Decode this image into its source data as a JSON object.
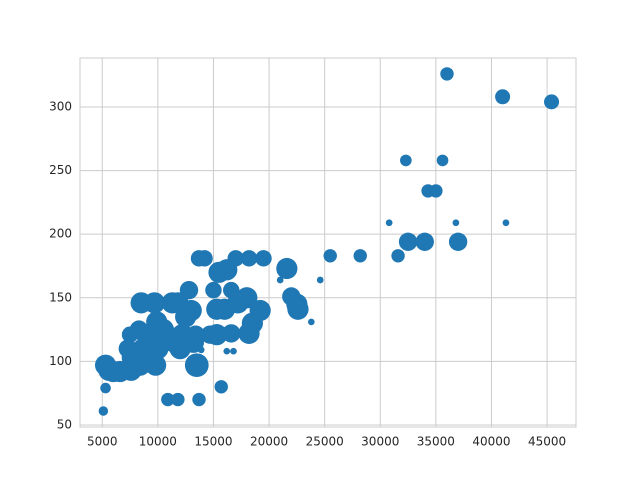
{
  "chart_data": {
    "type": "scatter",
    "color": "#1f77b4",
    "grid": true,
    "x": [
      36000,
      41000,
      45400,
      32300,
      35600,
      34300,
      35000,
      30800,
      36800,
      41300,
      32500,
      34000,
      37000,
      31600,
      25500,
      28200,
      24600,
      21000,
      21600,
      22000,
      22500,
      22600,
      23800,
      19500,
      18200,
      17000,
      16200,
      15500,
      13700,
      14200,
      16600,
      15000,
      18000,
      17200,
      19200,
      16000,
      15300,
      18500,
      18200,
      16600,
      15300,
      14700,
      16200,
      16800,
      13900,
      13500,
      15700,
      13700,
      10900,
      11800,
      5100,
      5300,
      12800,
      13000,
      12500,
      11300,
      11800,
      9700,
      8500,
      9900,
      9000,
      10700,
      11500,
      12000,
      10000,
      8700,
      7500,
      7300,
      7700,
      9000,
      8400,
      9800,
      7600,
      6600,
      6000,
      5300,
      5600,
      9200,
      13200,
      12200,
      13400,
      8300,
      10500
    ],
    "y": [
      326,
      308,
      304,
      258,
      258,
      234,
      234,
      209,
      209,
      209,
      194,
      194,
      194,
      183,
      183,
      183,
      164,
      164,
      173,
      151,
      145,
      141,
      131,
      181,
      181,
      181,
      172,
      170,
      181,
      181,
      156,
      156,
      150,
      146,
      140,
      141,
      141,
      130,
      122,
      122,
      121,
      121,
      108,
      108,
      109,
      97,
      80,
      70,
      70,
      70,
      61,
      79,
      156,
      140,
      135,
      146,
      146,
      146,
      146,
      131,
      121,
      121,
      115,
      110,
      110,
      110,
      121,
      110,
      103,
      103,
      97,
      97,
      93,
      92,
      92,
      97,
      93,
      110,
      115,
      121,
      121,
      125,
      125
    ],
    "sizes": [
      80,
      100,
      100,
      60,
      60,
      80,
      80,
      20,
      20,
      20,
      150,
      150,
      150,
      80,
      80,
      80,
      20,
      20,
      200,
      150,
      200,
      200,
      20,
      120,
      120,
      120,
      200,
      200,
      120,
      120,
      120,
      120,
      200,
      200,
      200,
      200,
      200,
      200,
      200,
      150,
      200,
      150,
      20,
      20,
      20,
      250,
      80,
      80,
      80,
      80,
      40,
      50,
      150,
      200,
      200,
      200,
      200,
      200,
      200,
      200,
      200,
      200,
      200,
      200,
      200,
      200,
      120,
      150,
      200,
      200,
      200,
      200,
      200,
      200,
      200,
      200,
      200,
      200,
      200,
      200,
      150,
      150,
      200
    ],
    "xlim": [
      3000,
      47600
    ],
    "ylim": [
      48.4,
      338.5
    ],
    "xticks": [
      5000,
      10000,
      15000,
      20000,
      25000,
      30000,
      35000,
      40000,
      45000
    ],
    "yticks": [
      50,
      100,
      150,
      200,
      250,
      300
    ]
  }
}
